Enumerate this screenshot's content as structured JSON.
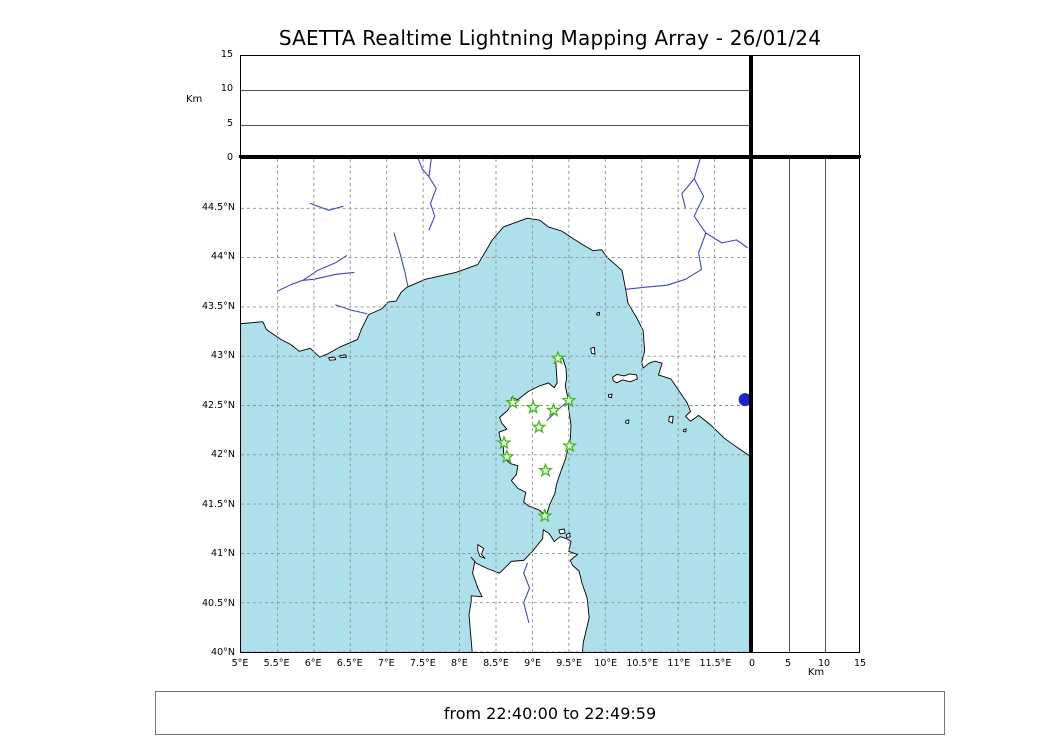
{
  "title": "SAETTA Realtime Lightning Mapping Array - 26/01/24",
  "footer": {
    "text": "from 22:40:00 to 22:49:59"
  },
  "axes": {
    "km_label": "Km",
    "km_max": 15,
    "km_ticks": [
      {
        "label": "0",
        "value": 0
      },
      {
        "label": "5",
        "value": 5
      },
      {
        "label": "10",
        "value": 10
      },
      {
        "label": "15",
        "value": 15
      }
    ]
  },
  "map": {
    "lon_range": [
      5,
      12
    ],
    "lat_range": [
      40,
      45
    ],
    "lat_ticks": [
      {
        "label": "44.5°N",
        "value": 44.5
      },
      {
        "label": "44°N",
        "value": 44
      },
      {
        "label": "43.5°N",
        "value": 43.5
      },
      {
        "label": "43°N",
        "value": 43
      },
      {
        "label": "42.5°N",
        "value": 42.5
      },
      {
        "label": "42°N",
        "value": 42
      },
      {
        "label": "41.5°N",
        "value": 41.5
      },
      {
        "label": "41°N",
        "value": 41
      },
      {
        "label": "40.5°N",
        "value": 40.5
      },
      {
        "label": "40°N",
        "value": 40
      }
    ],
    "lon_ticks": [
      {
        "label": "5°E",
        "value": 5
      },
      {
        "label": "5.5°E",
        "value": 5.5
      },
      {
        "label": "6°E",
        "value": 6
      },
      {
        "label": "6.5°E",
        "value": 6.5
      },
      {
        "label": "7°E",
        "value": 7
      },
      {
        "label": "7.5°E",
        "value": 7.5
      },
      {
        "label": "8°E",
        "value": 8
      },
      {
        "label": "8.5°E",
        "value": 8.5
      },
      {
        "label": "9°E",
        "value": 9
      },
      {
        "label": "9.5°E",
        "value": 9.5
      },
      {
        "label": "10°E",
        "value": 10
      },
      {
        "label": "10.5°E",
        "value": 10.5
      },
      {
        "label": "11°E",
        "value": 11
      },
      {
        "label": "11.5°E",
        "value": 11.5
      }
    ],
    "sea_color": "#ade0ea",
    "land_color": "#ffffff",
    "coast_color": "#000000",
    "river_color": "#3d46c9",
    "grid_color": "#8f8f8f",
    "station_color": "#45b722",
    "station_fill": "#e9f9d8",
    "event_dot": {
      "lon": 11.92,
      "lat": 42.56,
      "radius": 6.5,
      "color": "#2222cc"
    },
    "stations": [
      {
        "lon": 9.35,
        "lat": 42.98
      },
      {
        "lon": 8.73,
        "lat": 42.53
      },
      {
        "lon": 9.01,
        "lat": 42.48
      },
      {
        "lon": 9.29,
        "lat": 42.45
      },
      {
        "lon": 9.5,
        "lat": 42.55
      },
      {
        "lon": 9.09,
        "lat": 42.28
      },
      {
        "lon": 8.61,
        "lat": 42.12
      },
      {
        "lon": 9.51,
        "lat": 42.09
      },
      {
        "lon": 8.65,
        "lat": 41.98
      },
      {
        "lon": 9.18,
        "lat": 41.84
      },
      {
        "lon": 9.17,
        "lat": 41.38
      }
    ]
  }
}
